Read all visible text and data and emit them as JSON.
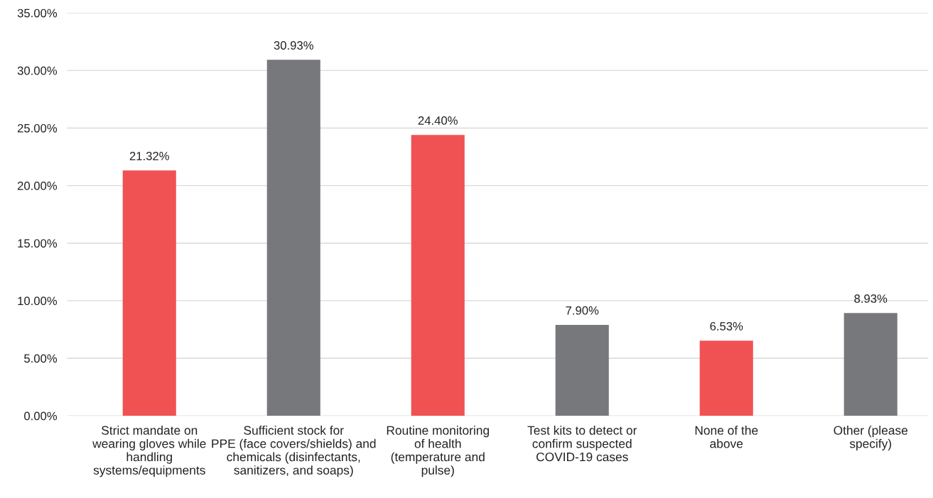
{
  "chart_data": {
    "type": "bar",
    "categories": [
      "Strict mandate on\nwearing gloves while\nhandling\nsystems/equipments",
      "Sufficient stock for\nPPE (face covers/shields) and\nchemicals (disinfectants,\nsanitizers, and soaps)",
      "Routine monitoring\nof health\n(temperature and\npulse)",
      "Test kits to detect or\nconfirm suspected\nCOVID-19 cases",
      "None of the\nabove",
      "Other (please\nspecify)"
    ],
    "values": [
      21.32,
      30.93,
      24.4,
      7.9,
      6.53,
      8.93
    ],
    "value_labels": [
      "21.32%",
      "30.93%",
      "24.40%",
      "7.90%",
      "6.53%",
      "8.93%"
    ],
    "colors": [
      "#f05253",
      "#77787b",
      "#f05253",
      "#77787b",
      "#f05253",
      "#77787b"
    ],
    "ylim": [
      0,
      35
    ],
    "yticks": [
      {
        "value": 0,
        "label": "0.00%"
      },
      {
        "value": 5,
        "label": "5.00%"
      },
      {
        "value": 10,
        "label": "10.00%"
      },
      {
        "value": 15,
        "label": "15.00%"
      },
      {
        "value": 20,
        "label": "20.00%"
      },
      {
        "value": 25,
        "label": "25.00%"
      },
      {
        "value": 30,
        "label": "30.00%"
      },
      {
        "value": 35,
        "label": "35.00%"
      }
    ],
    "grid": "y",
    "legend": false
  }
}
